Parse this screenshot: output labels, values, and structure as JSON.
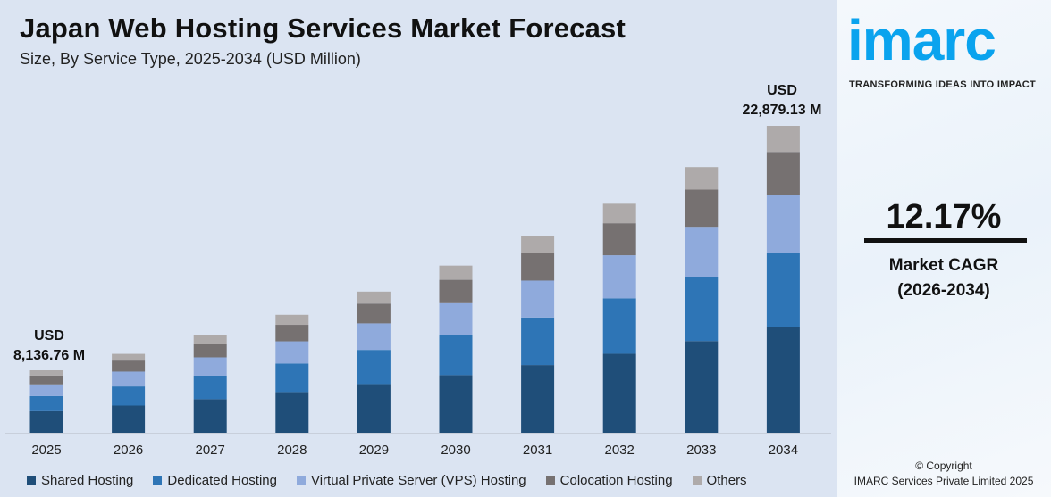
{
  "header": {
    "title": "Japan Web Hosting Services Market Forecast",
    "subtitle": "Size, By Service Type, 2025-2034 (USD Million)"
  },
  "chart_data": {
    "type": "bar",
    "stacked": true,
    "title": "Japan Web Hosting Services Market Forecast",
    "subtitle": "Size, By Service Type, 2025-2034 (USD Million)",
    "categories": [
      "2025",
      "2026",
      "2027",
      "2028",
      "2029",
      "2030",
      "2031",
      "2032",
      "2033",
      "2034"
    ],
    "series": [
      {
        "name": "Shared Hosting",
        "color": "#1f4e79",
        "values": [
          2807,
          3149,
          3532,
          3962,
          4444,
          4985,
          5592,
          6272,
          7036,
          7893
        ]
      },
      {
        "name": "Dedicated Hosting",
        "color": "#2e75b6",
        "values": [
          1969,
          2209,
          2478,
          2779,
          3117,
          3497,
          3923,
          4400,
          4935,
          5537
        ]
      },
      {
        "name": "Virtual Private Server (VPS) Hosting",
        "color": "#8faadc",
        "values": [
          1530,
          1716,
          1925,
          2159,
          2422,
          2717,
          3047,
          3418,
          3834,
          4301
        ]
      },
      {
        "name": "Colocation Hosting",
        "color": "#767171",
        "values": [
          1139,
          1278,
          1433,
          1608,
          1803,
          2023,
          2269,
          2545,
          2855,
          3203
        ]
      },
      {
        "name": "Others",
        "color": "#aeaaaa",
        "values": [
          692,
          776,
          870,
          976,
          1095,
          1228,
          1378,
          1545,
          1733,
          1945
        ]
      }
    ],
    "annotations": [
      {
        "category": "2025",
        "line1": "USD",
        "line2": "8,136.76 M"
      },
      {
        "category": "2034",
        "line1": "USD",
        "line2": "22,879.13 M"
      }
    ],
    "grid": false,
    "legend": "bottom"
  },
  "panel": {
    "logo": "imarc",
    "tagline": "TRANSFORMING IDEAS INTO IMPACT",
    "cagr_value": "12.17%",
    "cagr_label": "Market CAGR",
    "cagr_period": "(2026-2034)",
    "copyright_line1": "© Copyright",
    "copyright_line2": "IMARC Services Private Limited 2025"
  }
}
